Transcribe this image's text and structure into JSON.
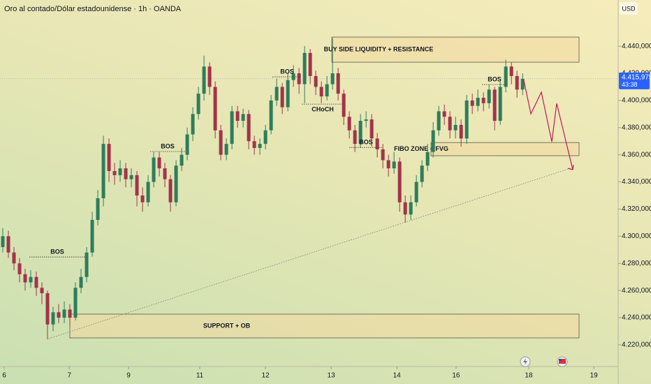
{
  "chart_data": {
    "type": "candlestick",
    "title": "Oro al contado/Dólar estadounidense · 1h · OANDA",
    "currency": "USD",
    "up_color": "#2e7d5b",
    "down_color": "#a3334a",
    "open": [
      4292,
      4300,
      4288,
      4280,
      4272,
      4266,
      4270,
      4262,
      4258,
      4235,
      4244,
      4240,
      4246,
      4240,
      4262,
      4270,
      4288,
      4312,
      4328,
      4368,
      4348,
      4345,
      4350,
      4342,
      4345,
      4330,
      4325,
      4340,
      4358,
      4350,
      4342,
      4325,
      4352,
      4360,
      4375,
      4390,
      4405,
      4425,
      4410,
      4378,
      4360,
      4368,
      4392,
      4385,
      4390,
      4370,
      4365,
      4368,
      4378,
      4400,
      4410,
      4395,
      4415,
      4420,
      4412,
      4435,
      4418,
      4410,
      4403,
      4412,
      4420,
      4405,
      4388,
      4378,
      4368,
      4385,
      4386,
      4372,
      4364,
      4356,
      4350,
      4355,
      4325,
      4316,
      4325,
      4340,
      4352,
      4362,
      4378,
      4392,
      4388,
      4378,
      4382,
      4372,
      4400,
      4396,
      4402,
      4398,
      4408,
      4385,
      4410,
      4425,
      4418,
      4408
    ],
    "high": [
      4306,
      4304,
      4292,
      4284,
      4276,
      4275,
      4274,
      4266,
      4260,
      4248,
      4250,
      4252,
      4250,
      4266,
      4276,
      4292,
      4318,
      4334,
      4374,
      4372,
      4354,
      4356,
      4354,
      4350,
      4348,
      4336,
      4345,
      4362,
      4362,
      4354,
      4345,
      4356,
      4365,
      4380,
      4395,
      4410,
      4433,
      4428,
      4414,
      4382,
      4372,
      4396,
      4396,
      4394,
      4393,
      4374,
      4372,
      4382,
      4404,
      4416,
      4413,
      4420,
      4426,
      4424,
      4440,
      4438,
      4422,
      4414,
      4418,
      4446,
      4424,
      4408,
      4392,
      4382,
      4390,
      4392,
      4390,
      4376,
      4368,
      4360,
      4362,
      4358,
      4330,
      4330,
      4345,
      4356,
      4368,
      4384,
      4396,
      4397,
      4392,
      4388,
      4386,
      4404,
      4405,
      4408,
      4406,
      4412,
      4410,
      4414,
      4430,
      4428,
      4422,
      4420
    ],
    "low": [
      4288,
      4284,
      4275,
      4266,
      4260,
      4262,
      4256,
      4250,
      4224,
      4230,
      4236,
      4236,
      4234,
      4238,
      4258,
      4266,
      4285,
      4308,
      4322,
      4340,
      4338,
      4340,
      4336,
      4336,
      4322,
      4318,
      4322,
      4336,
      4344,
      4336,
      4318,
      4322,
      4348,
      4356,
      4370,
      4386,
      4400,
      4404,
      4372,
      4356,
      4356,
      4364,
      4380,
      4380,
      4364,
      4360,
      4360,
      4364,
      4375,
      4396,
      4390,
      4392,
      4410,
      4405,
      4398,
      4412,
      4404,
      4398,
      4400,
      4408,
      4400,
      4382,
      4372,
      4362,
      4365,
      4380,
      4366,
      4358,
      4350,
      4344,
      4346,
      4318,
      4310,
      4312,
      4322,
      4336,
      4348,
      4358,
      4374,
      4382,
      4372,
      4372,
      4366,
      4368,
      4390,
      4392,
      4392,
      4394,
      4378,
      4382,
      4406,
      4412,
      4402,
      4404
    ],
    "close": [
      4300,
      4288,
      4280,
      4272,
      4266,
      4270,
      4262,
      4258,
      4235,
      4244,
      4240,
      4246,
      4240,
      4262,
      4270,
      4288,
      4312,
      4328,
      4368,
      4348,
      4345,
      4350,
      4342,
      4345,
      4330,
      4325,
      4340,
      4358,
      4350,
      4342,
      4325,
      4352,
      4360,
      4375,
      4390,
      4405,
      4425,
      4410,
      4378,
      4360,
      4368,
      4392,
      4385,
      4390,
      4370,
      4365,
      4368,
      4378,
      4400,
      4410,
      4395,
      4415,
      4420,
      4412,
      4435,
      4418,
      4410,
      4403,
      4412,
      4420,
      4405,
      4388,
      4378,
      4368,
      4385,
      4386,
      4372,
      4364,
      4356,
      4350,
      4355,
      4325,
      4316,
      4325,
      4340,
      4352,
      4362,
      4378,
      4392,
      4388,
      4378,
      4382,
      4372,
      4400,
      4396,
      4402,
      4398,
      4408,
      4385,
      4410,
      4425,
      4418,
      4408,
      4416
    ],
    "xlim": [
      -0.5,
      110.1
    ],
    "xticks": [
      {
        "value": 0.25,
        "label": "6"
      },
      {
        "value": 11.9,
        "label": "7"
      },
      {
        "value": 22.5,
        "label": "9"
      },
      {
        "value": 35.25,
        "label": "11"
      },
      {
        "value": 47,
        "label": "12"
      },
      {
        "value": 58.75,
        "label": "13"
      },
      {
        "value": 70.5,
        "label": "14"
      },
      {
        "value": 81.1,
        "label": "16"
      },
      {
        "value": 94.1,
        "label": "18"
      },
      {
        "value": 105.75,
        "label": "19"
      }
    ],
    "ylim": [
      4204,
      4474
    ],
    "yticks": [
      {
        "value": 4220,
        "label": "4.220,000"
      },
      {
        "value": 4240,
        "label": "4.240,000"
      },
      {
        "value": 4260,
        "label": "4.260,000"
      },
      {
        "value": 4280,
        "label": "4.280,000"
      },
      {
        "value": 4300,
        "label": "4.300,000"
      },
      {
        "value": 4320,
        "label": "4.320,000"
      },
      {
        "value": 4340,
        "label": "4.340,000"
      },
      {
        "value": 4360,
        "label": "4.360,000"
      },
      {
        "value": 4380,
        "label": "4.380,000"
      },
      {
        "value": 4400,
        "label": "4.400,000"
      },
      {
        "value": 4420,
        "label": "4.420,000"
      },
      {
        "value": 4440,
        "label": "4.440,000"
      }
    ],
    "last_price": {
      "value": 4415.975,
      "label": "4.415,975"
    },
    "countdown": "43:38",
    "zones": [
      {
        "label": "BUY SIDE LIQUIDITY + RESISTANCE",
        "top": 4446.7,
        "bottom": 4428.2
      },
      {
        "label": "FIBO ZONE + FVG",
        "top": 4369.0,
        "bottom": 4359.3
      },
      {
        "label": "SUPPORT + OB",
        "top": 4242.6,
        "bottom": 4225.1
      }
    ],
    "structure": [
      {
        "label": "BOS",
        "level": 4284.7
      },
      {
        "label": "BOS",
        "level": 4362.4
      },
      {
        "label": "BOS",
        "level": 4417.4
      },
      {
        "label": "CHoCH",
        "level": 4397.3
      },
      {
        "label": "BOS",
        "level": 4365.4
      },
      {
        "label": "BOS",
        "level": 4411.7
      }
    ],
    "trendline": [
      4224.6,
      4350.6
    ],
    "projection": [
      4414.8,
      4390.1,
      4406.1,
      4369.6,
      4397.8,
      4349.0
    ]
  }
}
